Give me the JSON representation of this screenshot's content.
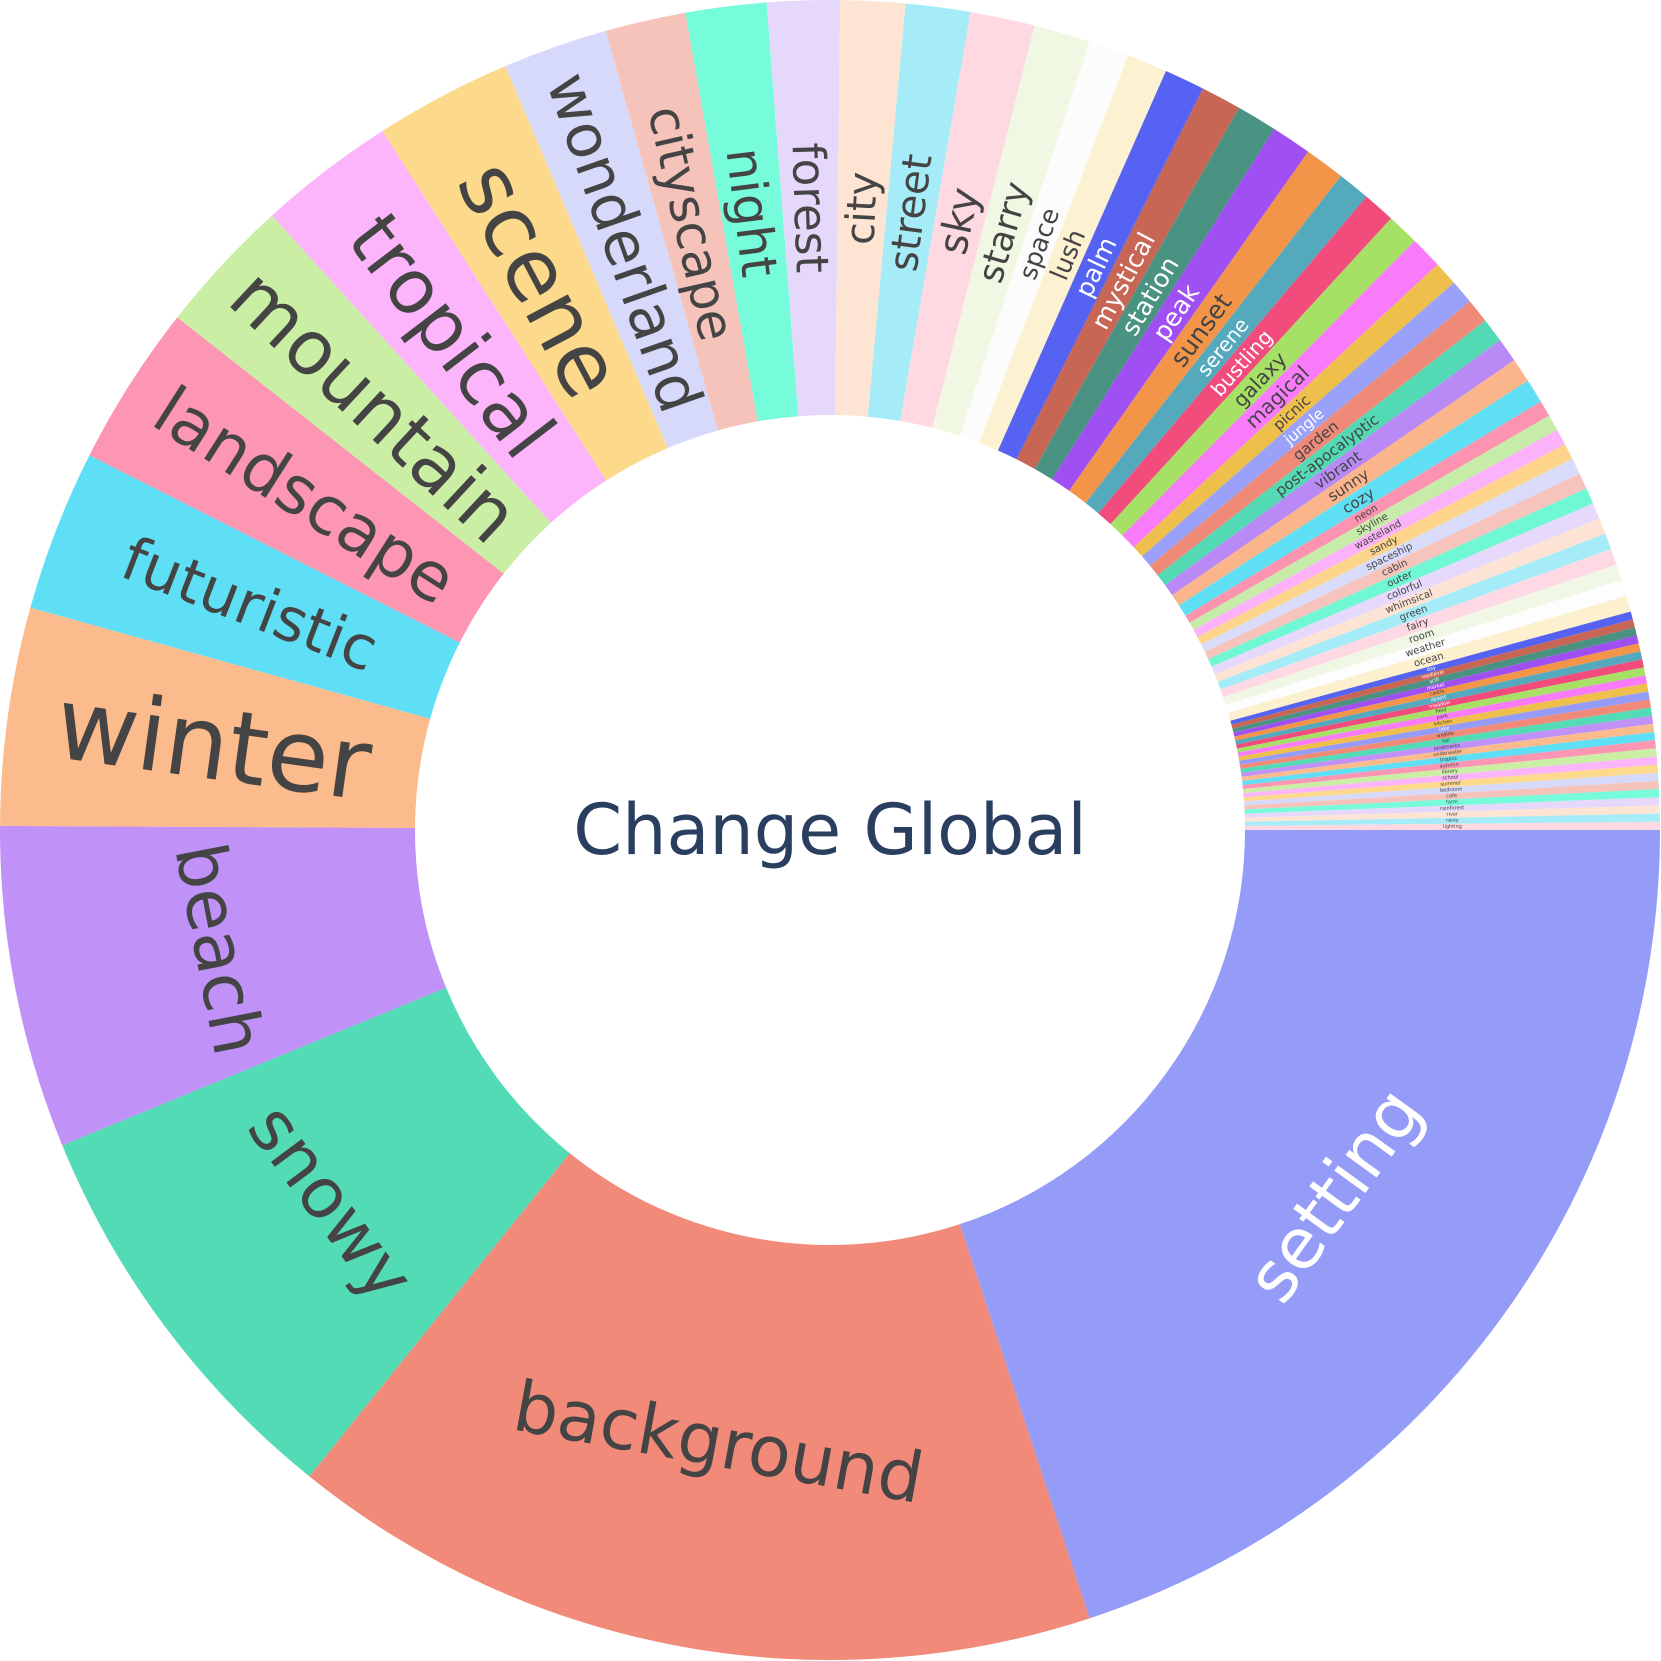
{
  "chart_data": {
    "type": "pie",
    "style": "donut",
    "title": "Change Global",
    "start": "right-horizontal",
    "direction": "clockwise",
    "categories": [
      "setting",
      "background",
      "snowy",
      "beach",
      "winter",
      "futuristic",
      "landscape",
      "mountain",
      "tropical",
      "scene",
      "wonderland",
      "cityscape",
      "night",
      "forest",
      "city",
      "street",
      "sky",
      "starry",
      "space",
      "lush",
      "palm",
      "mystical",
      "station",
      "peak",
      "sunset",
      "serene",
      "bustling",
      "galaxy",
      "magical",
      "picnic",
      "jungle",
      "garden",
      "post-apocalyptic",
      "vibrant",
      "sunny",
      "cozy",
      "neon",
      "skyline",
      "wasteland",
      "sandy",
      "spaceship",
      "cabin",
      "outer",
      "colorful",
      "whimsical",
      "green",
      "fairy",
      "room",
      "weather",
      "ocean",
      "day",
      "medieval",
      "scifi",
      "market",
      "castle",
      "desert",
      "meadow",
      "field",
      "park",
      "kitchen",
      "lake",
      "wildlife",
      "fall",
      "landmarks",
      "underwater",
      "tropics",
      "autumn",
      "library",
      "school",
      "summer",
      "bedroom",
      "cafe",
      "farm",
      "rainforest",
      "river",
      "rainy",
      "lighting"
    ],
    "values": [
      127,
      101,
      51,
      40,
      27,
      20,
      20,
      17,
      17,
      17,
      13,
      10,
      10,
      9,
      8,
      8,
      8,
      7,
      5,
      5,
      5,
      5,
      5,
      5,
      5,
      4,
      4,
      4,
      4,
      3,
      3,
      3,
      3,
      3,
      3,
      3,
      2,
      2,
      2,
      2,
      2,
      2,
      2,
      2,
      2,
      2,
      2,
      2,
      2,
      2,
      1,
      1,
      1,
      1,
      1,
      1,
      1,
      1,
      1,
      1,
      1,
      1,
      1,
      1,
      1,
      1,
      1,
      1,
      1,
      1,
      1,
      1,
      1,
      1,
      1,
      1,
      1
    ],
    "colors": [
      "#959cf8",
      "#f28a79",
      "#52dbb5",
      "#c092f8",
      "#fcbb8d",
      "#5fdff5",
      "#fc96b3",
      "#cbeea5",
      "#fcb4fb",
      "#fcd98b",
      "#d7d9fb",
      "#f6c3bb",
      "#76fcda",
      "#e5d8fb",
      "#fee4d3",
      "#a6ecf8",
      "#fed9e2",
      "#f0f8e4",
      "#fdfcfc",
      "#fcf1d0",
      "#5662f1",
      "#c86656",
      "#4a9382",
      "#a050f2",
      "#f39549",
      "#54aabc",
      "#f24c7c",
      "#a6e064",
      "#f87bfa",
      "#efbf4c",
      "#99a2f8",
      "#ef8a78",
      "#53dab5",
      "#b98af5",
      "#fbb58a",
      "#5fdff4",
      "#fc93b0",
      "#c7ecaa",
      "#fbb2f8",
      "#fcd48c",
      "#d9dbfb",
      "#f6c4bc",
      "#70f7d3",
      "#e6d9fb",
      "#fde3d3",
      "#a6ecf8",
      "#fed9e3",
      "#f0f8e5",
      "#fdfdfd",
      "#fcf0cf",
      "#5662f1",
      "#c86656",
      "#4a9382",
      "#a050f2",
      "#f39549",
      "#54aabc",
      "#f24c7c",
      "#a6e064",
      "#f87bfa",
      "#efbf4c",
      "#959cf8",
      "#f28a79",
      "#52dbb5",
      "#c092f8",
      "#fcbb8d",
      "#5fdff5",
      "#fc96b3",
      "#cbeea5",
      "#fcb4fb",
      "#fcd98b",
      "#d7d9fb",
      "#f6c3bb",
      "#76fcda",
      "#e5d8fb",
      "#fee4d3",
      "#a6ecf8",
      "#fed9e2"
    ],
    "label_colors": [
      "#ffffff",
      "#444444",
      "#444444",
      "#444444",
      "#444444",
      "#444444",
      "#444444",
      "#444444",
      "#444444",
      "#444444",
      "#444444",
      "#444444",
      "#444444",
      "#444444",
      "#444444",
      "#444444",
      "#444444",
      "#444444",
      "#444444",
      "#444444",
      "#ffffff",
      "#ffffff",
      "#ffffff",
      "#ffffff",
      "#444444",
      "#ffffff",
      "#ffffff",
      "#444444",
      "#444444",
      "#444444",
      "#ffffff",
      "#444444",
      "#444444",
      "#444444",
      "#444444",
      "#444444",
      "#444444",
      "#444444",
      "#444444",
      "#444444",
      "#444444",
      "#444444",
      "#444444",
      "#444444",
      "#444444",
      "#444444",
      "#444444",
      "#444444",
      "#444444",
      "#444444",
      "#ffffff",
      "#ffffff",
      "#ffffff",
      "#ffffff",
      "#444444",
      "#ffffff",
      "#ffffff",
      "#444444",
      "#444444",
      "#444444",
      "#ffffff",
      "#444444",
      "#444444",
      "#444444",
      "#444444",
      "#444444",
      "#444444",
      "#444444",
      "#444444",
      "#444444",
      "#444444",
      "#444444",
      "#444444",
      "#444444",
      "#444444",
      "#444444",
      "#444444"
    ],
    "legend": "none"
  }
}
